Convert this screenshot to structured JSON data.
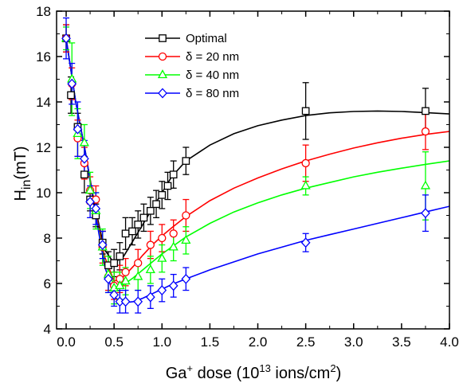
{
  "chart_data": {
    "type": "scatter",
    "title": "",
    "xlabel": {
      "base": "Ga",
      "sup1": "+",
      "mid": " dose (10",
      "sup2": "13",
      "mid2": " ions/cm",
      "sup3": "2",
      "end": ")"
    },
    "ylabel": {
      "base": "H",
      "sub": "in",
      "end": "(mT)"
    },
    "xlim": [
      -0.1,
      4.0
    ],
    "ylim": [
      4,
      18
    ],
    "xticks": [
      0.0,
      0.5,
      1.0,
      1.5,
      2.0,
      2.5,
      3.0,
      3.5,
      4.0
    ],
    "xtick_labels": [
      "0.0",
      "0.5",
      "1.0",
      "1.5",
      "2.0",
      "2.5",
      "3.0",
      "3.5",
      "4.0"
    ],
    "yticks": [
      4,
      6,
      8,
      10,
      12,
      14,
      16,
      18
    ],
    "ytick_labels": [
      "4",
      "6",
      "8",
      "10",
      "12",
      "14",
      "16",
      "18"
    ],
    "legend_position": "top-center",
    "series": [
      {
        "name": "Optimal",
        "color": "#000000",
        "marker": "square",
        "points": [
          {
            "x": 0.0,
            "y": 16.8,
            "err": 0.6
          },
          {
            "x": 0.05,
            "y": 14.3,
            "err": 0.8
          },
          {
            "x": 0.12,
            "y": 12.9,
            "err": 0.6
          },
          {
            "x": 0.19,
            "y": 10.8,
            "err": 0.8
          },
          {
            "x": 0.25,
            "y": 9.7,
            "err": 0.5
          },
          {
            "x": 0.31,
            "y": 9.0,
            "err": 0.5
          },
          {
            "x": 0.38,
            "y": 7.8,
            "err": 0.5
          },
          {
            "x": 0.44,
            "y": 6.8,
            "err": 0.6
          },
          {
            "x": 0.5,
            "y": 6.9,
            "err": 0.6
          },
          {
            "x": 0.56,
            "y": 7.2,
            "err": 0.6
          },
          {
            "x": 0.62,
            "y": 8.2,
            "err": 0.7
          },
          {
            "x": 0.69,
            "y": 8.3,
            "err": 0.6
          },
          {
            "x": 0.75,
            "y": 8.6,
            "err": 0.6
          },
          {
            "x": 0.81,
            "y": 8.9,
            "err": 0.6
          },
          {
            "x": 0.88,
            "y": 9.2,
            "err": 0.6
          },
          {
            "x": 0.94,
            "y": 9.5,
            "err": 0.6
          },
          {
            "x": 1.0,
            "y": 9.9,
            "err": 0.6
          },
          {
            "x": 1.06,
            "y": 10.3,
            "err": 0.6
          },
          {
            "x": 1.12,
            "y": 10.8,
            "err": 0.6
          },
          {
            "x": 1.25,
            "y": 11.4,
            "err": 0.6
          },
          {
            "x": 2.5,
            "y": 13.6,
            "err": 1.25
          },
          {
            "x": 3.75,
            "y": 13.6,
            "err": 1.0
          }
        ],
        "fit": {
          "x": [
            0.0,
            0.1,
            0.2,
            0.3,
            0.4,
            0.5,
            0.6,
            0.7,
            0.8,
            0.9,
            1.0,
            1.1,
            1.25,
            1.5,
            1.75,
            2.0,
            2.25,
            2.5,
            2.75,
            3.0,
            3.25,
            3.5,
            3.75,
            4.0
          ],
          "y": [
            16.8,
            14.0,
            11.8,
            9.4,
            7.5,
            6.9,
            7.2,
            7.9,
            8.6,
            9.3,
            10.0,
            10.7,
            11.4,
            12.1,
            12.6,
            12.95,
            13.2,
            13.4,
            13.52,
            13.58,
            13.6,
            13.58,
            13.53,
            13.47
          ]
        }
      },
      {
        "name": "δ = 20 nm",
        "color": "#ff0000",
        "marker": "circle",
        "points": [
          {
            "x": 0.0,
            "y": 16.8,
            "err": 0.6
          },
          {
            "x": 0.06,
            "y": 14.8,
            "err": 0.7
          },
          {
            "x": 0.12,
            "y": 12.4,
            "err": 0.8
          },
          {
            "x": 0.19,
            "y": 11.3,
            "err": 0.7
          },
          {
            "x": 0.25,
            "y": 10.1,
            "err": 0.6
          },
          {
            "x": 0.31,
            "y": 9.7,
            "err": 0.6
          },
          {
            "x": 0.38,
            "y": 7.6,
            "err": 0.7
          },
          {
            "x": 0.44,
            "y": 6.3,
            "err": 0.6
          },
          {
            "x": 0.5,
            "y": 5.9,
            "err": 0.6
          },
          {
            "x": 0.56,
            "y": 6.2,
            "err": 0.6
          },
          {
            "x": 0.62,
            "y": 6.5,
            "err": 0.6
          },
          {
            "x": 0.75,
            "y": 6.9,
            "err": 0.6
          },
          {
            "x": 0.88,
            "y": 7.7,
            "err": 0.6
          },
          {
            "x": 1.0,
            "y": 8.0,
            "err": 0.6
          },
          {
            "x": 1.12,
            "y": 8.2,
            "err": 0.6
          },
          {
            "x": 1.25,
            "y": 9.0,
            "err": 0.7
          },
          {
            "x": 2.5,
            "y": 11.3,
            "err": 0.8
          },
          {
            "x": 3.75,
            "y": 12.7,
            "err": 0.8
          }
        ],
        "fit": {
          "x": [
            0.0,
            0.1,
            0.2,
            0.3,
            0.4,
            0.5,
            0.6,
            0.7,
            0.8,
            0.9,
            1.0,
            1.1,
            1.25,
            1.5,
            1.75,
            2.0,
            2.25,
            2.5,
            2.75,
            3.0,
            3.25,
            3.5,
            3.75,
            4.0
          ],
          "y": [
            16.8,
            14.0,
            11.8,
            9.3,
            7.2,
            6.1,
            6.3,
            6.75,
            7.25,
            7.7,
            8.1,
            8.45,
            8.95,
            9.65,
            10.2,
            10.65,
            11.05,
            11.4,
            11.7,
            11.97,
            12.2,
            12.4,
            12.57,
            12.7
          ]
        }
      },
      {
        "name": "δ = 40 nm",
        "color": "#00ff00",
        "marker": "triangle",
        "points": [
          {
            "x": 0.0,
            "y": 16.8,
            "err": 0.5
          },
          {
            "x": 0.06,
            "y": 15.0,
            "err": 1.6
          },
          {
            "x": 0.12,
            "y": 12.6,
            "err": 1.1
          },
          {
            "x": 0.19,
            "y": 12.2,
            "err": 0.8
          },
          {
            "x": 0.25,
            "y": 10.1,
            "err": 0.8
          },
          {
            "x": 0.31,
            "y": 9.2,
            "err": 0.8
          },
          {
            "x": 0.38,
            "y": 7.6,
            "err": 0.8
          },
          {
            "x": 0.44,
            "y": 6.4,
            "err": 0.8
          },
          {
            "x": 0.5,
            "y": 5.8,
            "err": 0.7
          },
          {
            "x": 0.56,
            "y": 5.9,
            "err": 0.6
          },
          {
            "x": 0.62,
            "y": 6.1,
            "err": 0.6
          },
          {
            "x": 0.75,
            "y": 6.3,
            "err": 0.6
          },
          {
            "x": 0.88,
            "y": 6.6,
            "err": 0.6
          },
          {
            "x": 1.0,
            "y": 7.1,
            "err": 0.6
          },
          {
            "x": 1.12,
            "y": 7.6,
            "err": 0.6
          },
          {
            "x": 1.25,
            "y": 7.9,
            "err": 0.6
          },
          {
            "x": 2.5,
            "y": 10.3,
            "err": 0.4
          },
          {
            "x": 3.75,
            "y": 10.3,
            "err": 1.5
          }
        ],
        "fit": {
          "x": [
            0.0,
            0.1,
            0.2,
            0.3,
            0.4,
            0.5,
            0.6,
            0.7,
            0.8,
            0.9,
            1.0,
            1.1,
            1.25,
            1.5,
            1.75,
            2.0,
            2.25,
            2.5,
            2.75,
            3.0,
            3.25,
            3.5,
            3.75,
            4.0
          ],
          "y": [
            16.8,
            14.0,
            11.8,
            9.2,
            7.0,
            5.9,
            5.95,
            6.25,
            6.6,
            6.95,
            7.3,
            7.6,
            8.05,
            8.65,
            9.15,
            9.55,
            9.9,
            10.2,
            10.45,
            10.7,
            10.9,
            11.08,
            11.25,
            11.4
          ]
        }
      },
      {
        "name": "δ = 80 nm",
        "color": "#0000ff",
        "marker": "diamond",
        "points": [
          {
            "x": 0.0,
            "y": 16.8,
            "err": 0.9
          },
          {
            "x": 0.06,
            "y": 14.8,
            "err": 0.9
          },
          {
            "x": 0.12,
            "y": 12.8,
            "err": 1.2
          },
          {
            "x": 0.19,
            "y": 11.5,
            "err": 0.8
          },
          {
            "x": 0.25,
            "y": 9.6,
            "err": 0.7
          },
          {
            "x": 0.31,
            "y": 9.3,
            "err": 0.7
          },
          {
            "x": 0.38,
            "y": 7.7,
            "err": 0.6
          },
          {
            "x": 0.44,
            "y": 6.2,
            "err": 0.6
          },
          {
            "x": 0.5,
            "y": 5.5,
            "err": 0.5
          },
          {
            "x": 0.56,
            "y": 5.2,
            "err": 0.5
          },
          {
            "x": 0.62,
            "y": 5.2,
            "err": 0.5
          },
          {
            "x": 0.75,
            "y": 5.2,
            "err": 0.5
          },
          {
            "x": 0.88,
            "y": 5.4,
            "err": 0.5
          },
          {
            "x": 1.0,
            "y": 5.7,
            "err": 0.5
          },
          {
            "x": 1.12,
            "y": 5.9,
            "err": 0.5
          },
          {
            "x": 1.25,
            "y": 6.2,
            "err": 0.5
          },
          {
            "x": 2.5,
            "y": 7.8,
            "err": 0.4
          },
          {
            "x": 3.75,
            "y": 9.1,
            "err": 0.8
          }
        ],
        "fit": {
          "x": [
            0.0,
            0.1,
            0.2,
            0.3,
            0.4,
            0.5,
            0.6,
            0.7,
            0.8,
            0.9,
            1.0,
            1.1,
            1.25,
            1.5,
            1.75,
            2.0,
            2.25,
            2.5,
            2.75,
            3.0,
            3.25,
            3.5,
            3.75,
            4.0
          ],
          "y": [
            16.8,
            14.0,
            11.8,
            9.2,
            6.8,
            5.4,
            5.15,
            5.2,
            5.35,
            5.55,
            5.75,
            5.95,
            6.2,
            6.6,
            6.95,
            7.3,
            7.6,
            7.9,
            8.15,
            8.4,
            8.65,
            8.9,
            9.15,
            9.4
          ]
        }
      }
    ]
  }
}
